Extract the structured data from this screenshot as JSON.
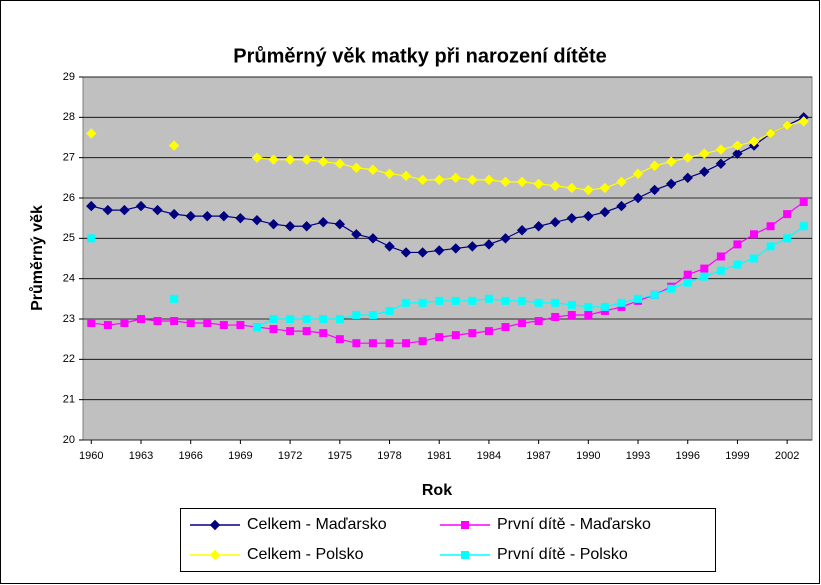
{
  "chart_data": {
    "type": "line",
    "title": "Průměrný věk matky při narození dítěte",
    "xlabel": "Rok",
    "ylabel": "Průměrný věk",
    "x": [
      1960,
      1961,
      1962,
      1963,
      1964,
      1965,
      1966,
      1967,
      1968,
      1969,
      1970,
      1971,
      1972,
      1973,
      1974,
      1975,
      1976,
      1977,
      1978,
      1979,
      1980,
      1981,
      1982,
      1983,
      1984,
      1985,
      1986,
      1987,
      1988,
      1989,
      1990,
      1991,
      1992,
      1993,
      1994,
      1995,
      1996,
      1997,
      1998,
      1999,
      2000,
      2001,
      2002,
      2003
    ],
    "xlim": [
      1959.5,
      2003.5
    ],
    "xticks": [
      1960,
      1963,
      1966,
      1969,
      1972,
      1975,
      1978,
      1981,
      1984,
      1987,
      1990,
      1993,
      1996,
      1999,
      2002
    ],
    "ylim": [
      20,
      29
    ],
    "yticks": [
      20,
      21,
      22,
      23,
      24,
      25,
      26,
      27,
      28,
      29
    ],
    "grid": true,
    "legend": "bottom",
    "series": [
      {
        "name": "Celkem - Maďarsko",
        "color": "#000080",
        "marker": "diamond",
        "values": [
          25.8,
          25.7,
          25.7,
          25.8,
          25.7,
          25.6,
          25.55,
          25.55,
          25.55,
          25.5,
          25.45,
          25.35,
          25.3,
          25.3,
          25.4,
          25.35,
          25.1,
          25.0,
          24.8,
          24.65,
          24.65,
          24.7,
          24.75,
          24.8,
          24.85,
          25.0,
          25.2,
          25.3,
          25.4,
          25.5,
          25.55,
          25.65,
          25.8,
          26.0,
          26.2,
          26.35,
          26.5,
          26.65,
          26.85,
          27.1,
          27.3,
          27.6,
          27.8,
          28.0
        ]
      },
      {
        "name": "Celkem - Polsko",
        "color": "#FFFF00",
        "marker": "diamond",
        "values": [
          27.6,
          null,
          null,
          null,
          null,
          27.3,
          null,
          null,
          null,
          null,
          27.0,
          26.95,
          26.95,
          26.95,
          26.9,
          26.85,
          26.75,
          26.7,
          26.6,
          26.55,
          26.45,
          26.45,
          26.5,
          26.45,
          26.45,
          26.4,
          26.4,
          26.35,
          26.3,
          26.25,
          26.2,
          26.25,
          26.4,
          26.6,
          26.8,
          26.9,
          27.0,
          27.1,
          27.2,
          27.3,
          27.4,
          27.6,
          27.8,
          27.9
        ]
      },
      {
        "name": "První dítě - Maďarsko",
        "color": "#FF00FF",
        "marker": "square",
        "values": [
          22.9,
          22.85,
          22.9,
          23.0,
          22.95,
          22.95,
          22.9,
          22.9,
          22.85,
          22.85,
          22.8,
          22.75,
          22.7,
          22.7,
          22.65,
          22.5,
          22.4,
          22.4,
          22.4,
          22.4,
          22.45,
          22.55,
          22.6,
          22.65,
          22.7,
          22.8,
          22.9,
          22.95,
          23.05,
          23.1,
          23.1,
          23.2,
          23.3,
          23.45,
          23.6,
          23.8,
          24.1,
          24.25,
          24.55,
          24.85,
          25.1,
          25.3,
          25.6,
          25.9
        ]
      },
      {
        "name": "První dítě - Polsko",
        "color": "#00FFFF",
        "marker": "square",
        "values": [
          25.0,
          null,
          null,
          null,
          null,
          23.5,
          null,
          null,
          null,
          null,
          22.8,
          23.0,
          23.0,
          23.0,
          23.0,
          23.0,
          23.1,
          23.1,
          23.2,
          23.4,
          23.4,
          23.45,
          23.45,
          23.45,
          23.5,
          23.45,
          23.45,
          23.4,
          23.4,
          23.35,
          23.3,
          23.3,
          23.4,
          23.5,
          23.6,
          23.75,
          23.9,
          24.05,
          24.2,
          24.35,
          24.5,
          24.8,
          25.0,
          25.3
        ]
      }
    ]
  }
}
